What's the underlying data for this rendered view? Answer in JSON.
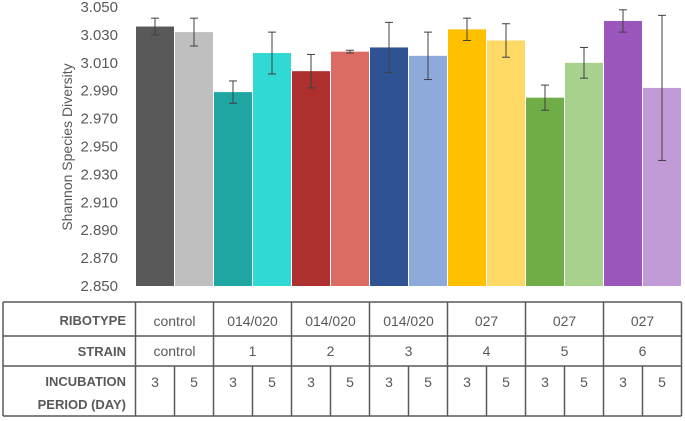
{
  "chart_data": {
    "type": "bar",
    "ylabel": "Shannon Species Diversity",
    "ylim": [
      2.85,
      3.05
    ],
    "yticks": [
      "3.050",
      "3.030",
      "3.010",
      "2.990",
      "2.970",
      "2.950",
      "2.930",
      "2.910",
      "2.890",
      "2.870",
      "2.850"
    ],
    "grid": false,
    "legend": "none",
    "error_bars": true,
    "bars": [
      {
        "ribotype": "control",
        "strain": "control",
        "incubation_day": "3",
        "value": 3.036,
        "error": 0.006,
        "color": "#595959"
      },
      {
        "ribotype": "control",
        "strain": "control",
        "incubation_day": "5",
        "value": 3.032,
        "error": 0.01,
        "color": "#bfbfbf"
      },
      {
        "ribotype": "014/020",
        "strain": "1",
        "incubation_day": "3",
        "value": 2.989,
        "error": 0.008,
        "color": "#1fa6a3"
      },
      {
        "ribotype": "014/020",
        "strain": "1",
        "incubation_day": "5",
        "value": 3.017,
        "error": 0.015,
        "color": "#30d9d3"
      },
      {
        "ribotype": "014/020",
        "strain": "2",
        "incubation_day": "3",
        "value": 3.004,
        "error": 0.012,
        "color": "#ad302e"
      },
      {
        "ribotype": "014/020",
        "strain": "2",
        "incubation_day": "5",
        "value": 3.018,
        "error": 0.001,
        "color": "#db6b63"
      },
      {
        "ribotype": "014/020",
        "strain": "3",
        "incubation_day": "3",
        "value": 3.021,
        "error": 0.018,
        "color": "#2e5292"
      },
      {
        "ribotype": "014/020",
        "strain": "3",
        "incubation_day": "5",
        "value": 3.015,
        "error": 0.017,
        "color": "#8eaadb"
      },
      {
        "ribotype": "027",
        "strain": "4",
        "incubation_day": "3",
        "value": 3.034,
        "error": 0.008,
        "color": "#ffc000"
      },
      {
        "ribotype": "027",
        "strain": "4",
        "incubation_day": "5",
        "value": 3.026,
        "error": 0.012,
        "color": "#ffd966"
      },
      {
        "ribotype": "027",
        "strain": "5",
        "incubation_day": "3",
        "value": 2.985,
        "error": 0.009,
        "color": "#70ad47"
      },
      {
        "ribotype": "027",
        "strain": "5",
        "incubation_day": "5",
        "value": 3.01,
        "error": 0.011,
        "color": "#a9d18e"
      },
      {
        "ribotype": "027",
        "strain": "6",
        "incubation_day": "3",
        "value": 3.04,
        "error": 0.008,
        "color": "#9b56bc"
      },
      {
        "ribotype": "027",
        "strain": "6",
        "incubation_day": "5",
        "value": 2.992,
        "error": 0.052,
        "color": "#c19bd8"
      }
    ],
    "table": {
      "row_headers": [
        "RIBOTYPE",
        "STRAIN",
        "INCUBATION",
        "PERIOD (DAY)"
      ],
      "ribotype": [
        "control",
        "014/020",
        "014/020",
        "014/020",
        "027",
        "027",
        "027"
      ],
      "strain": [
        "control",
        "1",
        "2",
        "3",
        "4",
        "5",
        "6"
      ],
      "incubation": [
        "3",
        "5",
        "3",
        "5",
        "3",
        "5",
        "3",
        "5",
        "3",
        "5",
        "3",
        "5",
        "3",
        "5"
      ]
    }
  }
}
